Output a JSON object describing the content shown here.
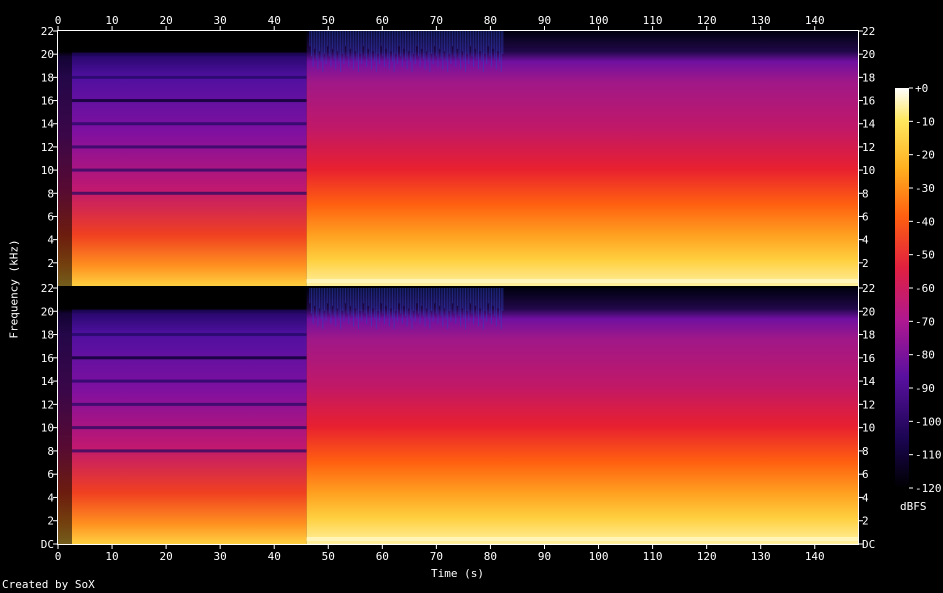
{
  "chart_data": {
    "type": "heatmap",
    "title": "",
    "xlabel": "Time (s)",
    "ylabel": "Frequency (kHz)",
    "xlim": [
      0,
      148
    ],
    "ylim": [
      0,
      22
    ],
    "x_ticks": [
      "0",
      "10",
      "20",
      "30",
      "40",
      "50",
      "60",
      "70",
      "80",
      "90",
      "100",
      "110",
      "120",
      "130",
      "140"
    ],
    "y_ticks": [
      "DC",
      "2",
      "4",
      "6",
      "8",
      "10",
      "12",
      "14",
      "16",
      "18",
      "20",
      "22"
    ],
    "channels": 2,
    "colorbar": {
      "unit": "dBFS",
      "range": [
        -120,
        0
      ],
      "ticks": [
        "+0",
        "-10",
        "-20",
        "-30",
        "-40",
        "-50",
        "-60",
        "-70",
        "-80",
        "-90",
        "-100",
        "-110",
        "-120"
      ]
    },
    "segments": [
      {
        "start": 0,
        "end": 46,
        "note": ""
      },
      {
        "start": 46,
        "end": 148,
        "note": ""
      }
    ]
  },
  "footer": {
    "credit": "Created by SoX"
  },
  "colors": {
    "background": "#000000",
    "text": "#ffffff",
    "palette": [
      "#000000",
      "#1a0550",
      "#5a10a0",
      "#b01890",
      "#e02040",
      "#ff6010",
      "#ffb020",
      "#ffe860",
      "#ffffff"
    ]
  }
}
